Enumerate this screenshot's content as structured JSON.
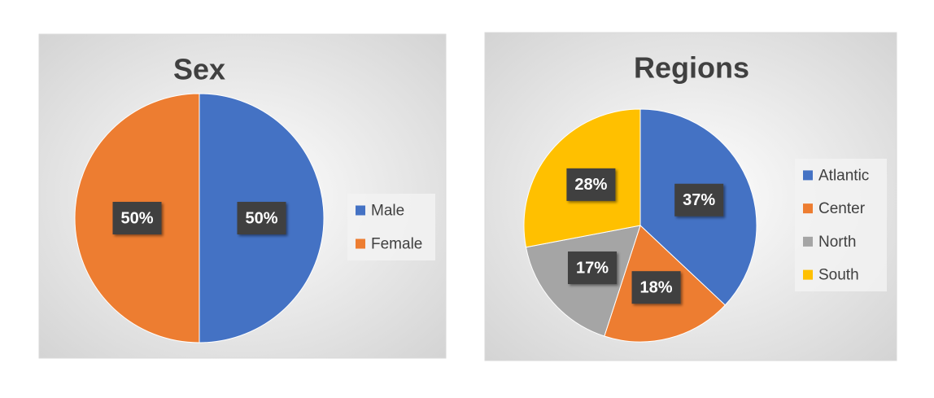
{
  "chart_data": [
    {
      "type": "pie",
      "title": "Sex",
      "categories": [
        "Male",
        "Female"
      ],
      "values": [
        50,
        50
      ],
      "value_labels": [
        "50%",
        "50%"
      ],
      "colors": [
        "#4472c4",
        "#ed7d31"
      ]
    },
    {
      "type": "pie",
      "title": "Regions",
      "categories": [
        "Atlantic",
        "Center",
        "North",
        "South"
      ],
      "values": [
        37,
        18,
        17,
        28
      ],
      "value_labels": [
        "37%",
        "18%",
        "17%",
        "28%"
      ],
      "colors": [
        "#4472c4",
        "#ed7d31",
        "#a5a5a5",
        "#ffc000"
      ]
    }
  ]
}
